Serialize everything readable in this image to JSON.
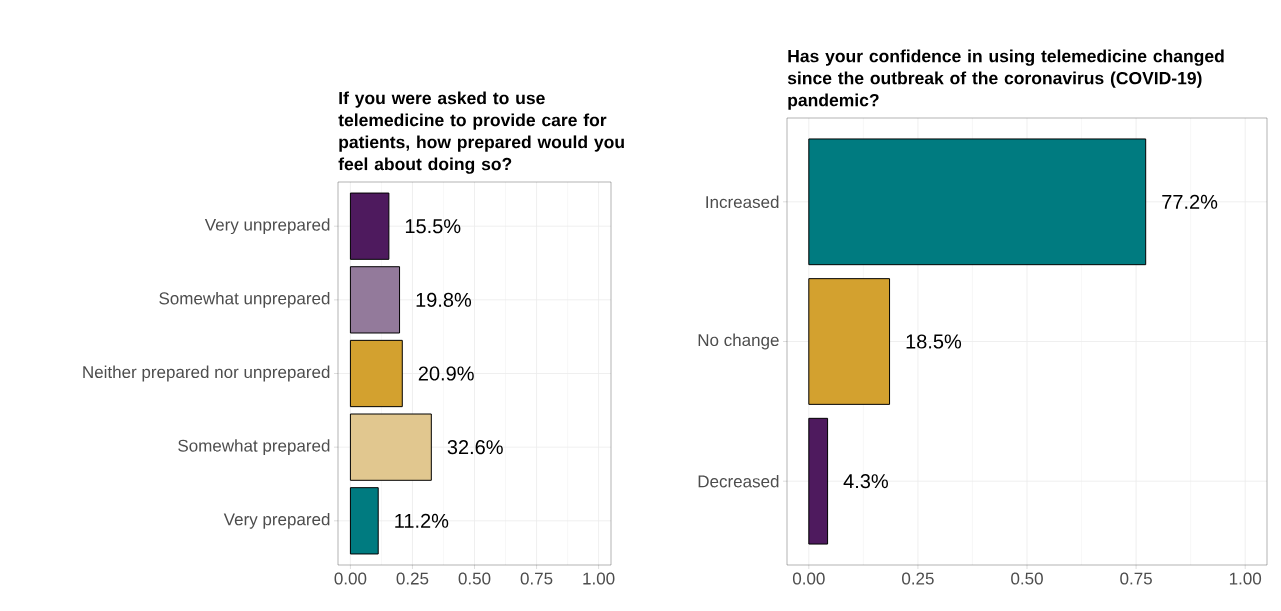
{
  "chart_data": [
    {
      "type": "bar",
      "orientation": "horizontal",
      "title": "If you were asked to use telemedicine to provide care for patients, how prepared would you feel about doing so?",
      "categories": [
        "Very unprepared",
        "Somewhat unprepared",
        "Neither prepared nor unprepared",
        "Somewhat prepared",
        "Very prepared"
      ],
      "values": [
        0.155,
        0.198,
        0.209,
        0.326,
        0.112
      ],
      "value_labels": [
        "15.5%",
        "19.8%",
        "20.9%",
        "32.6%",
        "11.2%"
      ],
      "colors": [
        "#4e1a5e",
        "#937a9b",
        "#d3a12f",
        "#e1c78f",
        "#007b80"
      ],
      "xlim": [
        -0.05,
        1.05
      ],
      "xticks": [
        {
          "value": 0,
          "label": "0.00"
        },
        {
          "value": 0.25,
          "label": "0.25"
        },
        {
          "value": 0.5,
          "label": "0.50"
        },
        {
          "value": 0.75,
          "label": "0.75"
        },
        {
          "value": 1,
          "label": "1.00"
        }
      ],
      "grid": true
    },
    {
      "type": "bar",
      "orientation": "horizontal",
      "title": "Has your confidence in using telemedicine changed since the outbreak of the coronavirus (COVID-19) pandemic?",
      "categories": [
        "Increased",
        "No change",
        "Decreased"
      ],
      "values": [
        0.772,
        0.185,
        0.043
      ],
      "value_labels": [
        "77.2%",
        "18.5%",
        "4.3%"
      ],
      "colors": [
        "#007b80",
        "#d3a12f",
        "#4e1a5e"
      ],
      "xlim": [
        -0.05,
        1.05
      ],
      "xticks": [
        {
          "value": 0,
          "label": "0.00"
        },
        {
          "value": 0.25,
          "label": "0.25"
        },
        {
          "value": 0.5,
          "label": "0.50"
        },
        {
          "value": 0.75,
          "label": "0.75"
        },
        {
          "value": 1,
          "label": "1.00"
        }
      ],
      "grid": true
    }
  ]
}
